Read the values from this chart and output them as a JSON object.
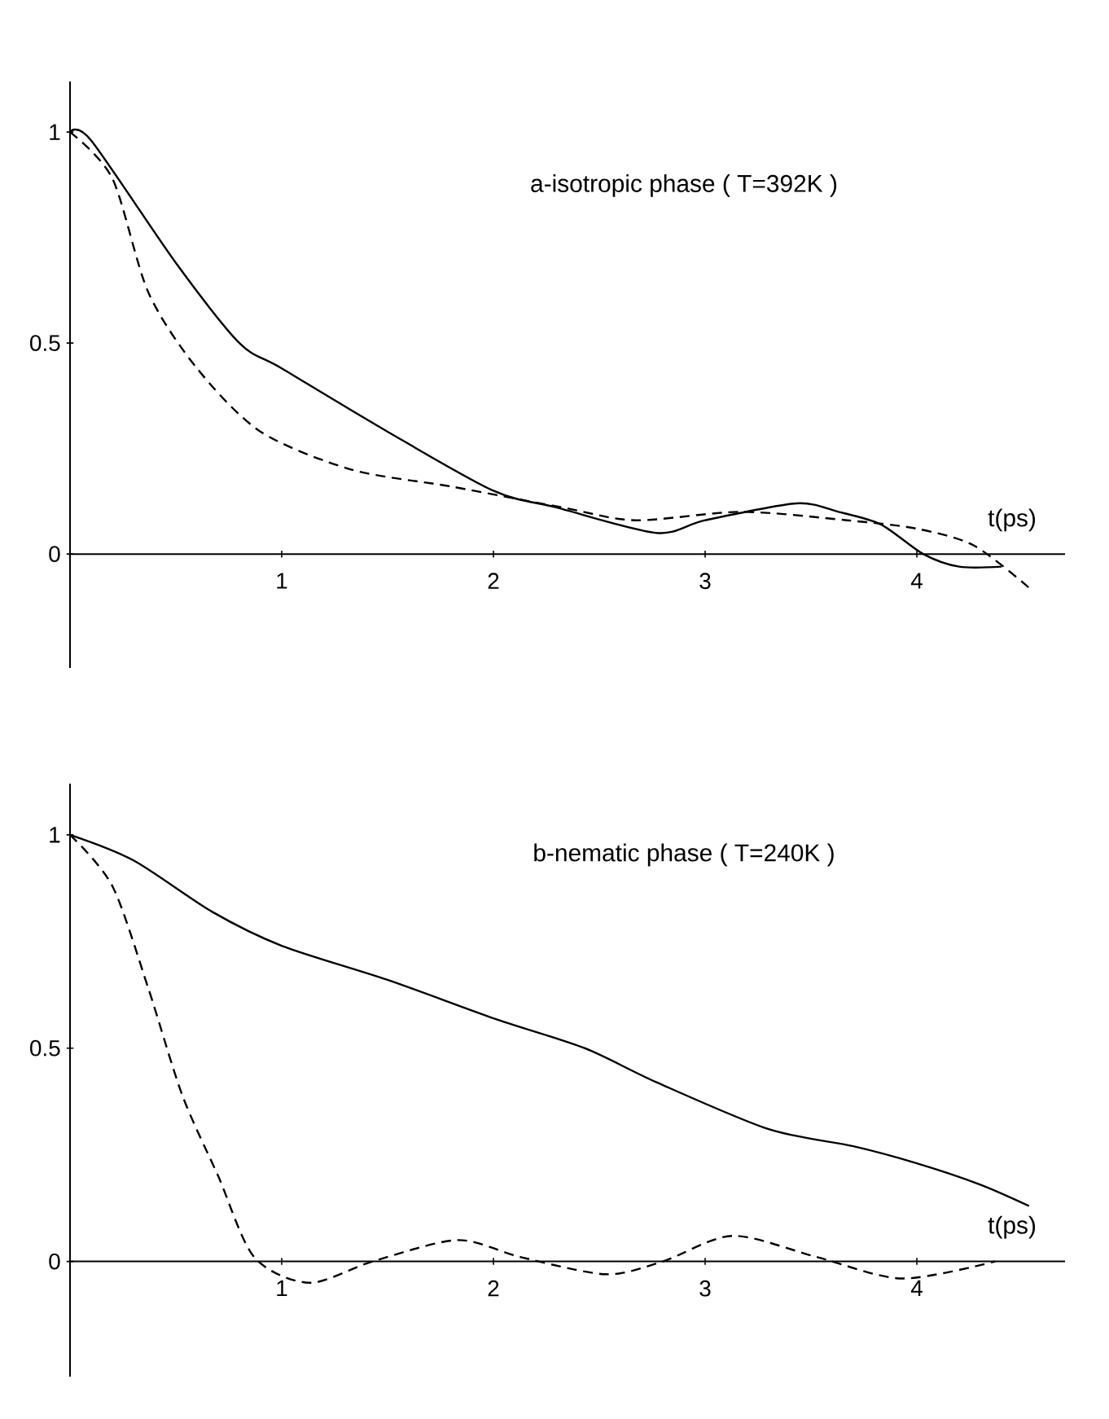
{
  "chart_data": [
    {
      "type": "line",
      "title": "a-isotropic phase ( T=392K )",
      "xlabel": "t(ps)",
      "xlim": [
        0,
        4.7
      ],
      "ylim": [
        -0.27,
        1.12
      ],
      "xticks": [
        1,
        2,
        3,
        4
      ],
      "yticks": [
        0,
        0.5,
        1
      ],
      "series": [
        {
          "color": "#000000",
          "line_style": "solid",
          "x": [
            0,
            0.1,
            0.5,
            0.8,
            1,
            1.5,
            2,
            2.3,
            2.77,
            3,
            3.43,
            3.63,
            3.83,
            4.03,
            4.2,
            4.4
          ],
          "values": [
            1,
            0.98,
            0.69,
            0.5,
            0.44,
            0.29,
            0.15,
            0.11,
            0.05,
            0.08,
            0.12,
            0.1,
            0.07,
            0,
            -0.03,
            -0.03
          ]
        },
        {
          "color": "#000000",
          "line_style": "dashed",
          "x": [
            0,
            0.2,
            0.37,
            0.6,
            0.9,
            1.33,
            1.8,
            2.33,
            2.67,
            3.17,
            3.67,
            4,
            4.27,
            4.53
          ],
          "values": [
            1,
            0.89,
            0.62,
            0.44,
            0.29,
            0.2,
            0.16,
            0.11,
            0.08,
            0.1,
            0.08,
            0.06,
            0.02,
            -0.08
          ]
        }
      ]
    },
    {
      "type": "line",
      "title": "b-nematic phase ( T=240K )",
      "xlabel": "t(ps)",
      "xlim": [
        0,
        4.7
      ],
      "ylim": [
        -0.27,
        1.12
      ],
      "xticks": [
        1,
        2,
        3,
        4
      ],
      "yticks": [
        0,
        0.5,
        1
      ],
      "series": [
        {
          "color": "#000000",
          "line_style": "solid",
          "x": [
            0,
            0.3,
            0.67,
            1,
            1.5,
            2,
            2.43,
            2.77,
            3.3,
            3.7,
            4,
            4.3,
            4.53
          ],
          "values": [
            1,
            0.94,
            0.82,
            0.74,
            0.66,
            0.57,
            0.5,
            0.42,
            0.31,
            0.27,
            0.23,
            0.18,
            0.13
          ]
        },
        {
          "color": "#000000",
          "line_style": "dashed",
          "x": [
            0,
            0.2,
            0.37,
            0.53,
            0.7,
            0.87,
            1.13,
            1.43,
            1.83,
            2.13,
            2.53,
            2.8,
            3.13,
            3.53,
            3.93,
            4.37
          ],
          "values": [
            1,
            0.88,
            0.64,
            0.39,
            0.2,
            0.01,
            -0.05,
            0,
            0.05,
            0.01,
            -0.03,
            0,
            0.06,
            0.01,
            -0.04,
            0
          ]
        }
      ]
    }
  ]
}
